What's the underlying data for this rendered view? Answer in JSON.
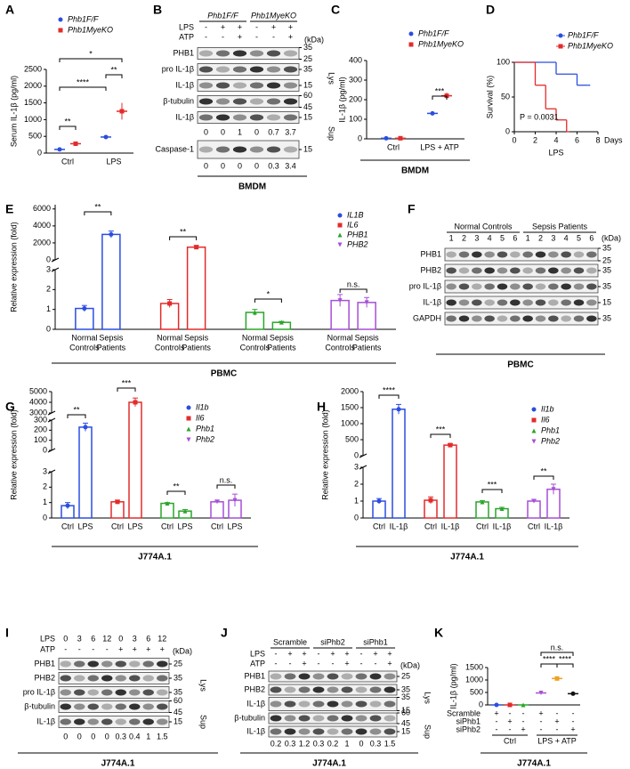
{
  "chart_data": [
    {
      "panel": "A",
      "type": "dot",
      "y_label": "Serum IL-1β (pg/ml)",
      "categories": [
        "Ctrl",
        "LPS"
      ],
      "series": [
        {
          "name": "Phb1F/F",
          "color": "#2b4de0",
          "marker": "circle",
          "values": [
            110,
            480
          ],
          "errors": [
            30,
            60
          ]
        },
        {
          "name": "Phb1MyeKO",
          "color": "#e32b2b",
          "marker": "square",
          "values": [
            280,
            1250
          ],
          "errors": [
            50,
            250
          ]
        }
      ],
      "ylim": [
        0,
        2500
      ],
      "yticks": [
        0,
        500,
        1000,
        1500,
        2000,
        2500
      ],
      "annotations": [
        "**",
        "****",
        "*",
        "**"
      ]
    },
    {
      "panel": "C",
      "type": "dot",
      "y_label": "IL-1β (pg/ml)",
      "categories": [
        "Ctrl",
        "LPS + ATP"
      ],
      "series": [
        {
          "name": "Phb1F/F",
          "color": "#2b4de0",
          "marker": "circle",
          "values": [
            3,
            130
          ],
          "errors": [
            1,
            10
          ]
        },
        {
          "name": "Phb1MyeKO",
          "color": "#e32b2b",
          "marker": "square",
          "values": [
            3,
            220
          ],
          "errors": [
            1,
            15
          ]
        }
      ],
      "ylim": [
        0,
        400
      ],
      "yticks": [
        0,
        100,
        200,
        300,
        400
      ],
      "annotations": [
        "***"
      ],
      "caption": "BMDM"
    },
    {
      "panel": "D",
      "type": "line",
      "y_label": "Survival (%)",
      "x_label": "Days",
      "caption": "LPS",
      "series": [
        {
          "name": "Phb1F/F",
          "color": "#2b4de0",
          "marker": "circle",
          "x": [
            0,
            4,
            6,
            7
          ],
          "values": [
            100,
            83,
            67,
            67
          ]
        },
        {
          "name": "Phb1MyeKO",
          "color": "#e32b2b",
          "marker": "square",
          "x": [
            0,
            2,
            3,
            4,
            5
          ],
          "values": [
            100,
            67,
            33,
            17,
            0
          ]
        }
      ],
      "xlim": [
        0,
        8
      ],
      "xticks": [
        0,
        2,
        4,
        6,
        8
      ],
      "ylim": [
        0,
        100
      ],
      "yticks": [
        0,
        50,
        100
      ],
      "annotations": [
        "P = 0.0031"
      ]
    },
    {
      "panel": "E",
      "type": "bar",
      "y_label": "Relative expression (fold)",
      "categories": [
        [
          "Normal",
          "Controls"
        ],
        [
          "Sepsis",
          "Patients"
        ]
      ],
      "series": [
        {
          "name": "IL1B",
          "color": "#2b4de0",
          "marker": "circle",
          "values": [
            1.05,
            3000
          ],
          "errors": [
            0.15,
            400
          ]
        },
        {
          "name": "IL6",
          "color": "#e32b2b",
          "marker": "square",
          "values": [
            1.3,
            1500
          ],
          "errors": [
            0.2,
            200
          ]
        },
        {
          "name": "PHB1",
          "color": "#2aa52a",
          "marker": "triangle",
          "values": [
            0.85,
            0.35
          ],
          "errors": [
            0.15,
            0.05
          ]
        },
        {
          "name": "PHB2",
          "color": "#a64fd6",
          "marker": "triangle-down",
          "values": [
            1.45,
            1.35
          ],
          "errors": [
            0.3,
            0.25
          ]
        }
      ],
      "segments": [
        {
          "ylim": [
            0,
            3
          ],
          "yticks": [
            0,
            1,
            2,
            3
          ]
        },
        {
          "ylim": [
            0,
            6500
          ],
          "yticks": [
            0,
            2000,
            4000,
            6000
          ]
        }
      ],
      "annotations": [
        "**",
        "**",
        "*",
        "n.s."
      ],
      "caption": "PBMC"
    },
    {
      "panel": "G",
      "type": "bar",
      "y_label": "Relative expression (fold)",
      "categories": [
        "Ctrl",
        "LPS"
      ],
      "series": [
        {
          "name": "Il1b",
          "color": "#2b4de0",
          "marker": "circle",
          "values": [
            0.8,
            230
          ],
          "errors": [
            0.2,
            40
          ]
        },
        {
          "name": "Il6",
          "color": "#e32b2b",
          "marker": "square",
          "values": [
            1.05,
            4000
          ],
          "errors": [
            0.1,
            400
          ]
        },
        {
          "name": "Phb1",
          "color": "#2aa52a",
          "marker": "triangle",
          "values": [
            0.95,
            0.45
          ],
          "errors": [
            0.05,
            0.1
          ]
        },
        {
          "name": "Phb2",
          "color": "#a64fd6",
          "marker": "triangle-down",
          "values": [
            1.05,
            1.15
          ],
          "errors": [
            0.1,
            0.4
          ]
        }
      ],
      "segments": [
        {
          "ylim": [
            0,
            3
          ],
          "yticks": [
            0,
            1,
            2,
            3
          ]
        },
        {
          "ylim": [
            0,
            300
          ],
          "yticks": [
            0,
            100,
            200,
            300
          ]
        },
        {
          "ylim": [
            3000,
            5000
          ],
          "yticks": [
            3000,
            4000,
            5000
          ]
        }
      ],
      "annotations": [
        "**",
        "***",
        "**",
        "n.s."
      ],
      "caption": "J774A.1"
    },
    {
      "panel": "H",
      "type": "bar",
      "y_label": "Relative expression (fold)",
      "categories": [
        "Ctrl",
        "IL-1β"
      ],
      "series": [
        {
          "name": "Il1b",
          "color": "#2b4de0",
          "marker": "circle",
          "values": [
            1.0,
            1450
          ],
          "errors": [
            0.15,
            150
          ]
        },
        {
          "name": "Il6",
          "color": "#e32b2b",
          "marker": "square",
          "values": [
            1.05,
            330
          ],
          "errors": [
            0.2,
            40
          ]
        },
        {
          "name": "Phb1",
          "color": "#2aa52a",
          "marker": "triangle",
          "values": [
            0.95,
            0.55
          ],
          "errors": [
            0.08,
            0.08
          ]
        },
        {
          "name": "Phb2",
          "color": "#a64fd6",
          "marker": "triangle-down",
          "values": [
            1.0,
            1.7
          ],
          "errors": [
            0.1,
            0.3
          ]
        }
      ],
      "segments": [
        {
          "ylim": [
            0,
            3
          ],
          "yticks": [
            0,
            1,
            2,
            3
          ]
        },
        {
          "ylim": [
            0,
            2000
          ],
          "yticks": [
            0,
            500,
            1000,
            1500,
            2000
          ]
        }
      ],
      "annotations": [
        "****",
        "***",
        "***",
        "**"
      ],
      "caption": "J774A.1"
    },
    {
      "panel": "K",
      "type": "dot",
      "y_label": "IL-1β (pg/ml)",
      "values": [
        0,
        0,
        0,
        480,
        1060,
        450
      ],
      "errors": [
        0,
        0,
        0,
        20,
        40,
        15
      ],
      "colors": [
        "#2b4de0",
        "#e32b2b",
        "#2aa52a",
        "#a64fd6",
        "#f0a020",
        "#111111"
      ],
      "markers": [
        "circle",
        "square",
        "triangle",
        "triangle-down",
        "square",
        "circle"
      ],
      "ylim": [
        0,
        1500
      ],
      "yticks": [
        0,
        500,
        1000,
        1500
      ],
      "conditions": [
        {
          "name": "Scramble",
          "values": [
            "+",
            "-",
            "-",
            "+",
            "-",
            "-"
          ]
        },
        {
          "name": "siPhb1",
          "values": [
            "-",
            "+",
            "-",
            "-",
            "+",
            "-"
          ]
        },
        {
          "name": "siPhb2",
          "values": [
            "-",
            "-",
            "+",
            "-",
            "-",
            "+"
          ]
        }
      ],
      "groups": [
        "Ctrl",
        "LPS + ATP"
      ],
      "annotations": [
        "n.s.",
        "****",
        "****"
      ],
      "caption": "J774A.1"
    }
  ],
  "blots": [
    {
      "panel": "B",
      "group_headers": [
        "Phb1F/F",
        "Phb1MyeKO"
      ],
      "treatments": [
        {
          "name": "LPS",
          "values": [
            "-",
            "+",
            "+",
            "-",
            "+",
            "+"
          ]
        },
        {
          "name": "ATP",
          "values": [
            "-",
            "-",
            "+",
            "-",
            "-",
            "+"
          ]
        }
      ],
      "kda_header": "(kDa)",
      "rows": [
        {
          "name": "PHB1",
          "kda": [
            35,
            25
          ]
        },
        {
          "name": "pro IL-1β",
          "kda": [
            35
          ]
        },
        {
          "name": "IL-1β",
          "kda": [
            15
          ]
        },
        {
          "name": "β-tubulin",
          "kda": [
            60,
            45
          ]
        },
        {
          "name": "IL-1β",
          "kda": [
            15
          ]
        },
        {
          "name": "Caspase-1",
          "kda": [
            15
          ]
        }
      ],
      "fractions": [
        "Lys",
        "Sup"
      ],
      "quantification": [
        [
          0,
          0,
          1,
          0,
          0.7,
          3.7
        ],
        [
          0,
          0,
          0,
          0,
          0.3,
          3.4
        ]
      ],
      "caption": "BMDM"
    },
    {
      "panel": "F",
      "group_headers": [
        "Normal Controls",
        "Sepsis Patients"
      ],
      "lanes": [
        1,
        2,
        3,
        4,
        5,
        6,
        1,
        2,
        3,
        4,
        5,
        6
      ],
      "kda_header": "(kDa)",
      "rows": [
        {
          "name": "PHB1",
          "kda": [
            35,
            25
          ]
        },
        {
          "name": "PHB2",
          "kda": [
            35
          ]
        },
        {
          "name": "pro IL-1β",
          "kda": [
            35
          ]
        },
        {
          "name": "IL-1β",
          "kda": [
            15
          ]
        },
        {
          "name": "GAPDH",
          "kda": [
            35
          ]
        }
      ],
      "caption": "PBMC"
    },
    {
      "panel": "I",
      "treatments": [
        {
          "name": "LPS",
          "values": [
            0,
            3,
            6,
            12,
            0,
            3,
            6,
            12
          ]
        },
        {
          "name": "ATP",
          "values": [
            "-",
            "-",
            "-",
            "-",
            "+",
            "+",
            "+",
            "+"
          ]
        }
      ],
      "kda_header": "(kDa)",
      "rows": [
        {
          "name": "PHB1",
          "kda": [
            25
          ]
        },
        {
          "name": "PHB2",
          "kda": [
            35
          ]
        },
        {
          "name": "pro IL-1β",
          "kda": [
            35
          ]
        },
        {
          "name": "β-tubulin",
          "kda": [
            60,
            45
          ]
        },
        {
          "name": "IL-1β",
          "kda": [
            15
          ]
        }
      ],
      "fractions": [
        "Lys",
        "Sup"
      ],
      "quantification": [
        [
          0,
          0,
          0,
          0,
          0.3,
          0.4,
          1,
          1.5
        ]
      ],
      "caption": "J774A.1"
    },
    {
      "panel": "J",
      "group_headers": [
        "Scramble",
        "siPhb2",
        "siPhb1"
      ],
      "treatments": [
        {
          "name": "LPS",
          "values": [
            "-",
            "+",
            "+",
            "-",
            "+",
            "+",
            "-",
            "+",
            "+"
          ]
        },
        {
          "name": "ATP",
          "values": [
            "-",
            "-",
            "+",
            "-",
            "-",
            "+",
            "-",
            "-",
            "+"
          ]
        }
      ],
      "kda_header": "(kDa)",
      "rows": [
        {
          "name": "PHB1",
          "kda": [
            25
          ]
        },
        {
          "name": "PHB2",
          "kda": [
            35
          ]
        },
        {
          "name": "IL-1β",
          "kda": [
            35,
            15
          ]
        },
        {
          "name": "β-tubulin",
          "kda": [
            60,
            45
          ]
        },
        {
          "name": "IL-1β",
          "kda": [
            15
          ]
        }
      ],
      "fractions": [
        "Lys",
        "Sup"
      ],
      "quantification": [
        [
          0.2,
          0.3,
          1.2,
          0.3,
          0.2,
          1,
          0,
          0.3,
          1.5
        ]
      ],
      "caption": "J774A.1"
    }
  ]
}
